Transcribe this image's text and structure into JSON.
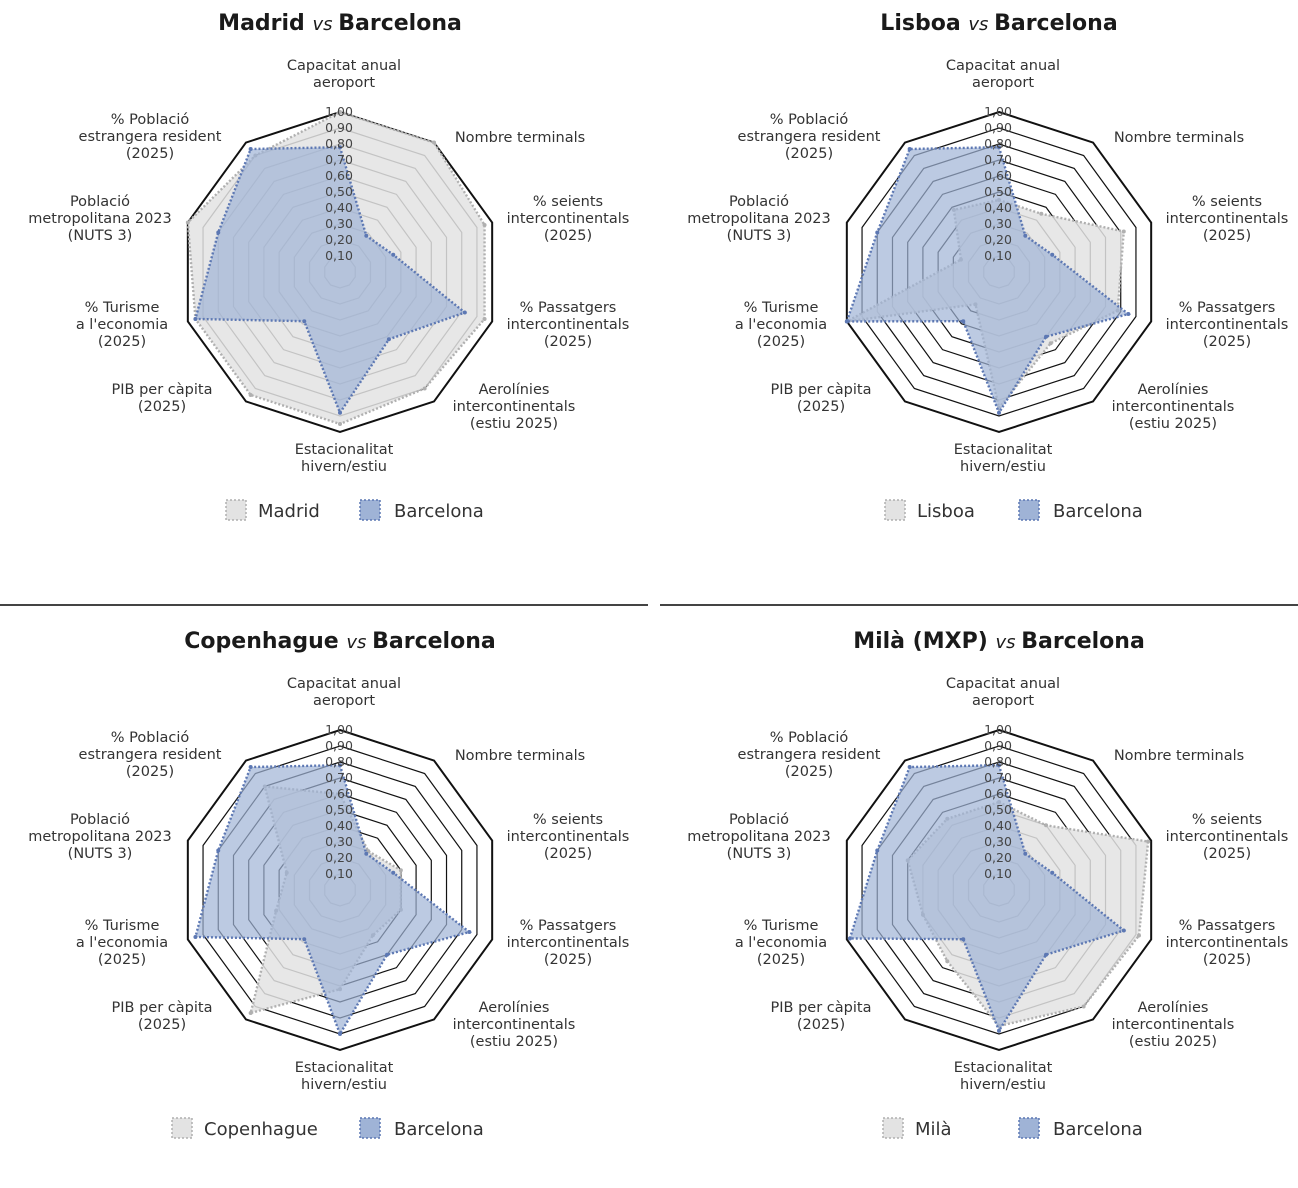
{
  "axis_labels": [
    [
      "Capacitat anual",
      "aeroport"
    ],
    [
      "Nombre terminals"
    ],
    [
      "% seients",
      "intercontinentals",
      "(2025)"
    ],
    [
      "% Passatgers",
      "intercontinentals",
      "(2025)"
    ],
    [
      "Aerolínies",
      "intercontinentals",
      "(estiu 2025)"
    ],
    [
      "Estacionalitat",
      "hivern/estiu"
    ],
    [
      "PIB per càpita",
      "(2025)"
    ],
    [
      "% Turisme",
      "a l'economia",
      "(2025)"
    ],
    [
      "Població",
      "metropolitana 2023",
      "(NUTS 3)"
    ],
    [
      "% Població",
      "estrangera resident",
      "(2025)"
    ]
  ],
  "vs_word": "vs",
  "colors": {
    "comparison": "#e3e3e3",
    "comparison_stroke": "#b0b0b0",
    "barcelona": "#9fb3d6",
    "barcelona_stroke": "#5d78b3",
    "ring": "#111111"
  },
  "chart_data": [
    {
      "type": "radar",
      "title_left": "Madrid",
      "title_right": "Barcelona",
      "rlim": [
        0,
        1
      ],
      "ticks": [
        "0,10",
        "0,20",
        "0,30",
        "0,40",
        "0,50",
        "0,60",
        "0,70",
        "0,80",
        "0,90",
        "1,00"
      ],
      "series": [
        {
          "name": "Madrid",
          "values": [
            1.0,
            1.0,
            0.95,
            0.95,
            0.9,
            0.95,
            0.95,
            0.95,
            1.0,
            0.9
          ]
        },
        {
          "name": "Barcelona",
          "values": [
            0.78,
            0.28,
            0.35,
            0.82,
            0.52,
            0.88,
            0.38,
            0.95,
            0.8,
            0.95
          ]
        }
      ]
    },
    {
      "type": "radar",
      "title_left": "Lisboa",
      "title_right": "Barcelona",
      "rlim": [
        0,
        1
      ],
      "ticks": [
        "0,10",
        "0,20",
        "0,30",
        "0,40",
        "0,50",
        "0,60",
        "0,70",
        "0,80",
        "0,90",
        "1,00"
      ],
      "series": [
        {
          "name": "Lisboa",
          "values": [
            0.45,
            0.45,
            0.82,
            0.78,
            0.55,
            0.85,
            0.25,
            1.0,
            0.25,
            0.48
          ]
        },
        {
          "name": "Barcelona",
          "values": [
            0.78,
            0.28,
            0.35,
            0.85,
            0.5,
            0.88,
            0.38,
            1.0,
            0.8,
            0.95
          ]
        }
      ]
    },
    {
      "type": "radar",
      "title_left": "Copenhague",
      "title_right": "Barcelona",
      "rlim": [
        0,
        1
      ],
      "ticks": [
        "0,10",
        "0,20",
        "0,30",
        "0,40",
        "0,50",
        "0,60",
        "0,70",
        "0,80",
        "0,90",
        "1,00"
      ],
      "series": [
        {
          "name": "Copenhague",
          "values": [
            0.6,
            0.3,
            0.4,
            0.4,
            0.35,
            0.62,
            0.95,
            0.42,
            0.35,
            0.8
          ]
        },
        {
          "name": "Barcelona",
          "values": [
            0.78,
            0.28,
            0.35,
            0.85,
            0.5,
            0.9,
            0.38,
            0.95,
            0.8,
            0.95
          ]
        }
      ]
    },
    {
      "type": "radar",
      "title_left": "Milà (MXP)",
      "title_right": "Barcelona",
      "legend_left": "Milà",
      "rlim": [
        0,
        1
      ],
      "ticks": [
        "0,10",
        "0,20",
        "0,30",
        "0,40",
        "0,50",
        "0,60",
        "0,70",
        "0,80",
        "0,90",
        "1,00"
      ],
      "series": [
        {
          "name": "Milà",
          "values": [
            0.55,
            0.5,
            0.98,
            0.92,
            0.9,
            0.85,
            0.55,
            0.5,
            0.6,
            0.55
          ]
        },
        {
          "name": "Barcelona",
          "values": [
            0.78,
            0.28,
            0.35,
            0.82,
            0.5,
            0.88,
            0.38,
            0.98,
            0.8,
            0.95
          ]
        }
      ]
    }
  ]
}
